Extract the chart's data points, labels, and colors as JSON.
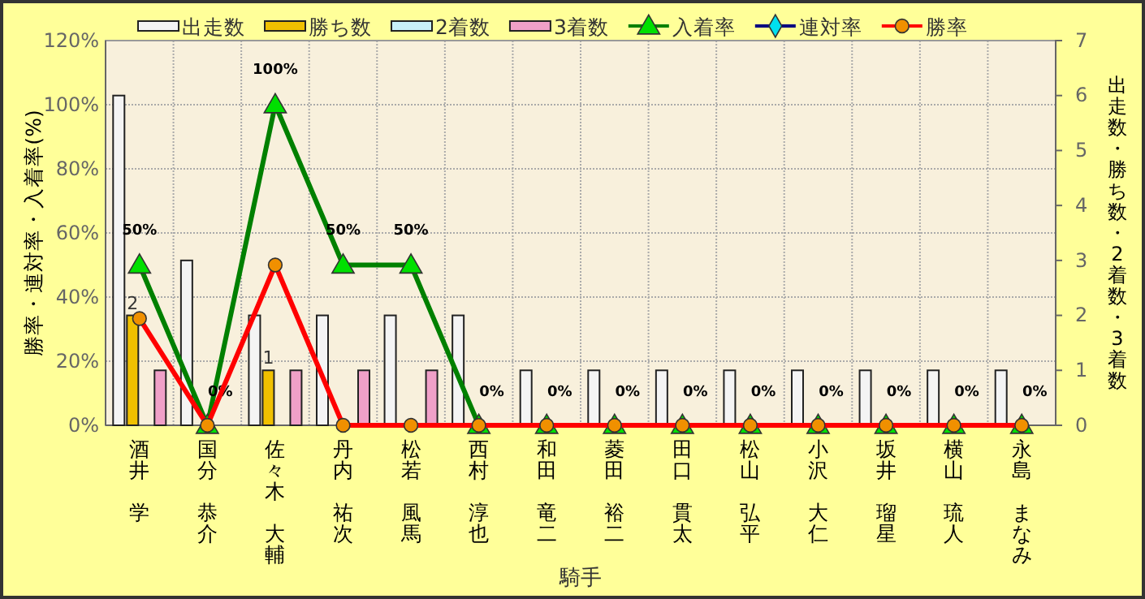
{
  "chart_data": {
    "type": "bar",
    "xlabel": "騎手",
    "ylabel": "勝率・連対率・入着率(%)",
    "y2label": "出走数・勝ち数・2着数・3着数",
    "categories": [
      "酒井　学",
      "国分　恭介",
      "佐々木　大輔",
      "丹内　祐次",
      "松若　風馬",
      "西村　淳也",
      "和田　竜二",
      "菱田　裕二",
      "田口　貫太",
      "松山　弘平",
      "小沢　大仁",
      "坂井　瑠星",
      "横山　琉人",
      "永島　まなみ"
    ],
    "series": [
      {
        "name": "出走数",
        "type": "bar",
        "axis": "y2",
        "color": "#f4f4f4",
        "values": [
          6,
          3,
          2,
          2,
          2,
          2,
          1,
          1,
          1,
          1,
          1,
          1,
          1,
          1
        ]
      },
      {
        "name": "勝ち数",
        "type": "bar",
        "axis": "y2",
        "color": "#f0c000",
        "values": [
          2,
          0,
          1,
          0,
          0,
          0,
          0,
          0,
          0,
          0,
          0,
          0,
          0,
          0
        ],
        "value_labels": [
          "2",
          null,
          "1",
          null,
          null,
          null,
          null,
          null,
          null,
          null,
          null,
          null,
          null,
          null
        ]
      },
      {
        "name": "2着数",
        "type": "bar",
        "axis": "y2",
        "color": "#c8f0f8",
        "values": [
          0,
          0,
          0,
          0,
          0,
          0,
          0,
          0,
          0,
          0,
          0,
          0,
          0,
          0
        ]
      },
      {
        "name": "3着数",
        "type": "bar",
        "axis": "y2",
        "color": "#f0a0c8",
        "values": [
          1,
          0,
          1,
          1,
          1,
          0,
          0,
          0,
          0,
          0,
          0,
          0,
          0,
          0
        ]
      },
      {
        "name": "入着率",
        "type": "line",
        "color": "#008000",
        "marker": "triangle",
        "values": [
          50,
          0,
          100,
          50,
          50,
          0,
          0,
          0,
          0,
          0,
          0,
          0,
          0,
          0
        ],
        "value_labels": [
          "50%",
          "0%",
          "100%",
          "50%",
          "50%",
          "0%",
          "0%",
          "0%",
          "0%",
          "0%",
          "0%",
          "0%",
          "0%",
          "0%"
        ]
      },
      {
        "name": "連対率",
        "type": "line",
        "color": "#000080",
        "marker": "diamond",
        "values": [
          null,
          null,
          null,
          null,
          null,
          null,
          null,
          null,
          null,
          null,
          null,
          null,
          null,
          null
        ]
      },
      {
        "name": "勝率",
        "type": "line",
        "color": "#ff0000",
        "marker": "circle",
        "values": [
          33.3,
          0,
          50,
          0,
          0,
          0,
          0,
          0,
          0,
          0,
          0,
          0,
          0,
          0
        ]
      }
    ],
    "ylim": [
      0,
      120
    ],
    "yticks": [
      {
        "value": 0,
        "label": "0%"
      },
      {
        "value": 20,
        "label": "20%"
      },
      {
        "value": 40,
        "label": "40%"
      },
      {
        "value": 60,
        "label": "60%"
      },
      {
        "value": 80,
        "label": "80%"
      },
      {
        "value": 100,
        "label": "100%"
      },
      {
        "value": 120,
        "label": "120%"
      }
    ],
    "y2lim": [
      0,
      7
    ],
    "y2ticks": [
      0,
      1,
      2,
      3,
      4,
      5,
      6,
      7
    ],
    "grid": true,
    "legend": "top"
  }
}
